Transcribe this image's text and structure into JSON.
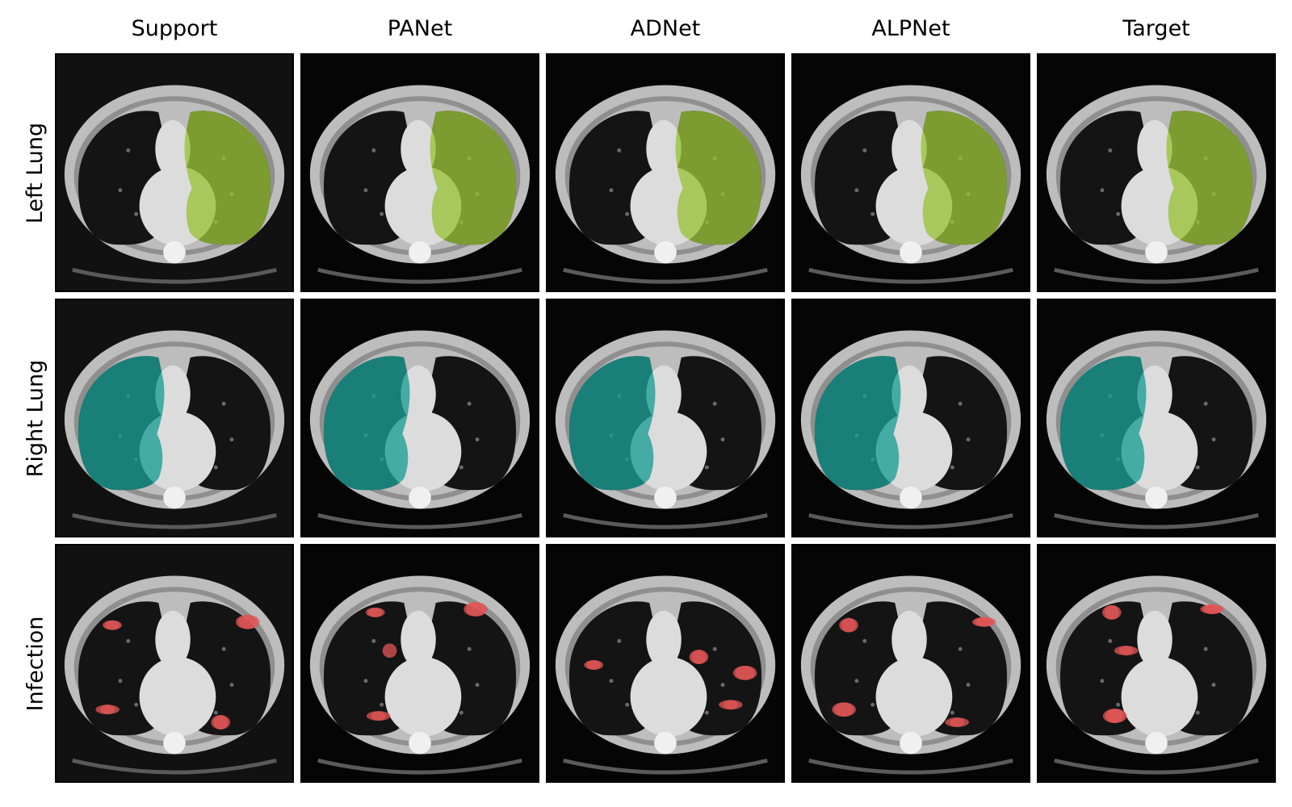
{
  "columns": [
    "Support",
    "PANet",
    "ADNet",
    "ALPNet",
    "Target"
  ],
  "rows": [
    {
      "label": "Left Lung",
      "structure": "left-lung",
      "color": "#9ac23a"
    },
    {
      "label": "Right Lung",
      "structure": "right-lung",
      "color": "#1e9d96"
    },
    {
      "label": "Infection",
      "structure": "infection",
      "color": "#e05555"
    }
  ],
  "colors": {
    "background": "#050505",
    "body": "#bdbdbd",
    "fat_band": "#8f8f8f",
    "lung": "#141414",
    "mediastinum": "#dcdcdc"
  }
}
